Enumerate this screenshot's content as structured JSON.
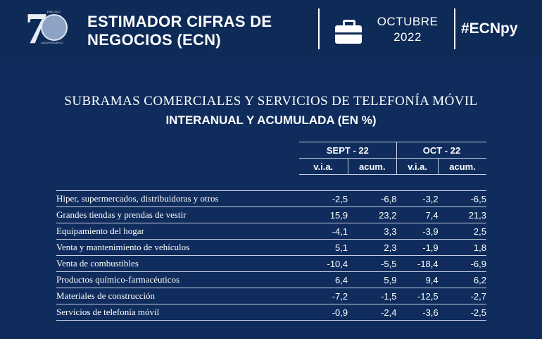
{
  "header": {
    "logo_seven": "7",
    "logo_years": "1952-2022",
    "logo_caption": "ANIVERSARIO",
    "title_line1": "ESTIMADOR CIFRAS DE",
    "title_line2": "NEGOCIOS (ECN)",
    "briefcase_icon": "briefcase-icon",
    "month": "OCTUBRE",
    "year": "2022",
    "hashtag": "#ECNpy"
  },
  "title": "SUBRAMAS COMERCIALES Y SERVICIOS DE TELEFONÍA MÓVIL",
  "subtitle": "INTERANUAL Y ACUMULADA (EN %)",
  "table": {
    "periods": [
      "SEPT - 22",
      "OCT - 22"
    ],
    "subheaders": [
      "v.i.a.",
      "acum.",
      "v.i.a.",
      "acum."
    ],
    "rows": [
      {
        "label": "Hiper, supermercados, distribuidoras y otros",
        "values": [
          "-2,5",
          "-6,8",
          "-3,2",
          "-6,5"
        ]
      },
      {
        "label": "Grandes tiendas y prendas de vestir",
        "values": [
          "15,9",
          "23,2",
          "7,4",
          "21,3"
        ]
      },
      {
        "label": "Equipamiento del hogar",
        "values": [
          "-4,1",
          "3,3",
          "-3,9",
          "2,5"
        ]
      },
      {
        "label": "Venta y mantenimiento de vehículos",
        "values": [
          "5,1",
          "2,3",
          "-1,9",
          "1,8"
        ]
      },
      {
        "label": "Venta de combustibles",
        "values": [
          "-10,4",
          "-5,5",
          "-18,4",
          "-6,9"
        ]
      },
      {
        "label": "Productos químico-farmacéuticos",
        "values": [
          "6,4",
          "5,9",
          "9,4",
          "6,2"
        ]
      },
      {
        "label": "Materiales de construcción",
        "values": [
          "-7,2",
          "-1,5",
          "-12,5",
          "-2,7"
        ]
      },
      {
        "label": "Servicios de telefonía móvil",
        "values": [
          "-0,9",
          "-2,4",
          "-3,6",
          "-2,5"
        ]
      }
    ]
  },
  "colors": {
    "background": "#0f2c5c",
    "header": "#0e2a57",
    "text": "#ffffff",
    "rule": "#c9d3e4"
  }
}
